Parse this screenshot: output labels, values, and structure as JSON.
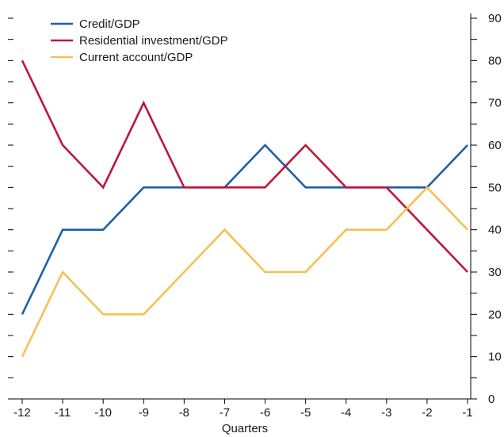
{
  "chart_data": {
    "type": "line",
    "title": "",
    "xlabel": "Quarters",
    "ylabel": "",
    "x": [
      -12,
      -11,
      -10,
      -9,
      -8,
      -7,
      -6,
      -5,
      -4,
      -3,
      -2,
      -1
    ],
    "x_ticks": [
      "-12",
      "-11",
      "-10",
      "-9",
      "-8",
      "-7",
      "-6",
      "-5",
      "-4",
      "-3",
      "-2",
      "-1"
    ],
    "ylim": [
      0,
      90
    ],
    "y_ticks": [
      "0",
      "10",
      "20",
      "30",
      "40",
      "50",
      "60",
      "70",
      "80",
      "90"
    ],
    "grid": false,
    "legend_position": "top-left",
    "series": [
      {
        "name": "Credit/GDP",
        "color": "#1f5fa6",
        "values": [
          20,
          40,
          40,
          50,
          50,
          50,
          60,
          50,
          50,
          50,
          50,
          60
        ]
      },
      {
        "name": "Residential investment/GDP",
        "color": "#c0163b",
        "values": [
          80,
          60,
          50,
          70,
          50,
          50,
          50,
          60,
          50,
          50,
          40,
          30
        ]
      },
      {
        "name": "Current account/GDP",
        "color": "#f5c150",
        "values": [
          10,
          30,
          20,
          20,
          30,
          40,
          30,
          30,
          40,
          40,
          50,
          40
        ]
      }
    ]
  }
}
